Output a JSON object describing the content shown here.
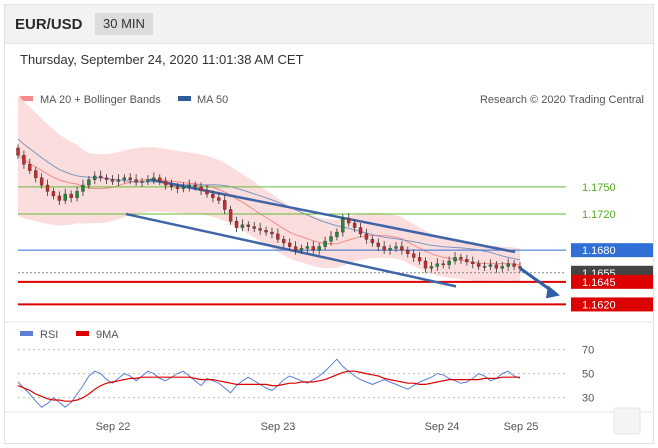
{
  "header": {
    "pair": "EUR/USD",
    "timeframe": "30 MIN",
    "datetime": "Thursday, September 24, 2020 11:01:38 AM CET"
  },
  "legend": {
    "bollinger": "MA 20 + Bollinger Bands",
    "ma50": "MA 50",
    "credit": "Research © 2020 Trading Central"
  },
  "rsi_legend": {
    "rsi": "RSI",
    "ma": "9MA"
  },
  "colors": {
    "bollinger": "#f48a8a",
    "ma50": "#2e5b9a",
    "support_resistance_green": "#66bb33",
    "red_level": "#dd0000",
    "blue_level": "#2f6fd6",
    "channel": "#3f65a8",
    "rsi": "#5b7fd6",
    "rsi_ma": "#dd0000"
  },
  "chart_data": [
    {
      "type": "candlestick",
      "title": "EUR/USD",
      "x_ticks": [
        "Sep 22",
        "Sep 23",
        "Sep 24",
        "Sep 25"
      ],
      "ylim": [
        1.1605,
        1.1835
      ],
      "levels": [
        {
          "label": "1.1750",
          "value": 1.175,
          "style": "green"
        },
        {
          "label": "1.1720",
          "value": 1.172,
          "style": "green"
        },
        {
          "label": "1.1680",
          "value": 1.168,
          "style": "blue"
        },
        {
          "label": "1.1655",
          "value": 1.1655,
          "style": "dark"
        },
        {
          "label": "1.1645",
          "value": 1.1645,
          "style": "red"
        },
        {
          "label": "1.1620",
          "value": 1.162,
          "style": "red"
        }
      ],
      "closes": [
        1.1785,
        1.1775,
        1.1768,
        1.176,
        1.1752,
        1.1745,
        1.174,
        1.1735,
        1.1742,
        1.1738,
        1.1745,
        1.1752,
        1.1758,
        1.1762,
        1.176,
        1.1758,
        1.1756,
        1.1758,
        1.176,
        1.1758,
        1.1755,
        1.1756,
        1.1758,
        1.176,
        1.1756,
        1.1752,
        1.175,
        1.1748,
        1.175,
        1.1752,
        1.175,
        1.1746,
        1.1742,
        1.1738,
        1.1735,
        1.1725,
        1.1712,
        1.1705,
        1.1708,
        1.1706,
        1.1704,
        1.1702,
        1.17,
        1.1698,
        1.1692,
        1.1688,
        1.1684,
        1.168,
        1.1682,
        1.1684,
        1.168,
        1.1684,
        1.169,
        1.1695,
        1.17,
        1.1715,
        1.171,
        1.1705,
        1.1698,
        1.1692,
        1.1688,
        1.1684,
        1.168,
        1.1682,
        1.1684,
        1.168,
        1.1676,
        1.1672,
        1.1668,
        1.166,
        1.1662,
        1.1665,
        1.1664,
        1.1668,
        1.1672,
        1.167,
        1.1667,
        1.1665,
        1.1662,
        1.1662,
        1.1664,
        1.166,
        1.1662,
        1.1665,
        1.1662,
        1.166
      ],
      "projection_target": 1.163
    },
    {
      "type": "line",
      "title": "RSI",
      "ylim": [
        18,
        78
      ],
      "y_ticks": [
        70,
        50,
        30
      ],
      "rsi": [
        43,
        38,
        33,
        27,
        22,
        25,
        30,
        26,
        22,
        26,
        33,
        40,
        48,
        52,
        50,
        45,
        42,
        46,
        50,
        48,
        44,
        48,
        52,
        50,
        46,
        44,
        47,
        50,
        52,
        48,
        44,
        40,
        46,
        44,
        42,
        38,
        34,
        40,
        44,
        47,
        44,
        41,
        38,
        36,
        40,
        45,
        48,
        46,
        44,
        42,
        45,
        48,
        52,
        57,
        62,
        56,
        52,
        48,
        45,
        43,
        41,
        43,
        45,
        43,
        41,
        39,
        37,
        40,
        43,
        45,
        47,
        50,
        49,
        46,
        44,
        42,
        43,
        46,
        50,
        48,
        44,
        46,
        50,
        52,
        48,
        46
      ],
      "ma9": [
        40,
        38,
        36,
        33,
        31,
        29,
        28,
        28,
        27,
        27,
        28,
        30,
        33,
        37,
        40,
        42,
        43,
        44,
        45,
        46,
        46,
        47,
        47,
        47,
        47,
        47,
        47,
        47,
        47,
        47,
        46,
        45,
        45,
        45,
        44,
        43,
        42,
        41,
        41,
        41,
        41,
        41,
        41,
        40,
        40,
        41,
        42,
        42,
        43,
        43,
        43,
        44,
        45,
        47,
        49,
        51,
        52,
        52,
        51,
        50,
        49,
        48,
        46,
        45,
        44,
        43,
        42,
        42,
        41,
        41,
        42,
        43,
        44,
        45,
        45,
        45,
        45,
        45,
        45,
        46,
        46,
        46,
        47,
        47,
        47,
        47
      ]
    }
  ]
}
